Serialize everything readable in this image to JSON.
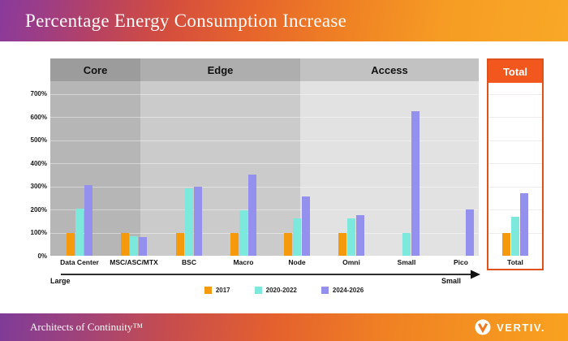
{
  "banner": {
    "title": "Percentage Energy Consumption Increase"
  },
  "footer": {
    "tagline": "Architects of Continuity™",
    "brand": "VERTIV."
  },
  "chart_data": {
    "type": "bar",
    "title": "Percentage Energy Consumption Increase",
    "categories": [
      "Data Center",
      "MSC/ASC/MTX",
      "BSC",
      "Macro",
      "Node",
      "Omni",
      "Small",
      "Pico",
      "Total"
    ],
    "series": [
      {
        "name": "2017",
        "color": "#F5990D",
        "values": [
          100,
          100,
          100,
          100,
          100,
          100,
          null,
          null,
          100
        ]
      },
      {
        "name": "2020-2022",
        "color": "#7DE8DC",
        "values": [
          205,
          85,
          290,
          195,
          160,
          160,
          100,
          null,
          170
        ]
      },
      {
        "name": "2024-2026",
        "color": "#9491EE",
        "values": [
          305,
          80,
          300,
          350,
          255,
          175,
          625,
          200,
          270
        ]
      }
    ],
    "groups": [
      {
        "label": "Core",
        "header_color": "#9C9C9C",
        "body_color": "#B6B6B6",
        "categories": [
          "Data Center",
          "MSC/ASC/MTX"
        ]
      },
      {
        "label": "Edge",
        "header_color": "#AEAEAE",
        "body_color": "#CBCBCB",
        "categories": [
          "BSC",
          "Macro",
          "Node"
        ]
      },
      {
        "label": "Access",
        "header_color": "#C2C2C2",
        "body_color": "#E2E2E2",
        "categories": [
          "Omni",
          "Small",
          "Pico"
        ]
      },
      {
        "label": "Total",
        "header_color": "#F2571E",
        "body_color": "#FFFFFF",
        "border_color": "#E0521C",
        "categories": [
          "Total"
        ]
      }
    ],
    "y_ticks": [
      "0%",
      "100%",
      "200%",
      "300%",
      "400%",
      "500%",
      "600%",
      "700%"
    ],
    "ylim": [
      0,
      750
    ],
    "grid": true,
    "legend_position": "bottom",
    "size_axis": {
      "left_label": "Large",
      "right_label": "Small"
    }
  }
}
